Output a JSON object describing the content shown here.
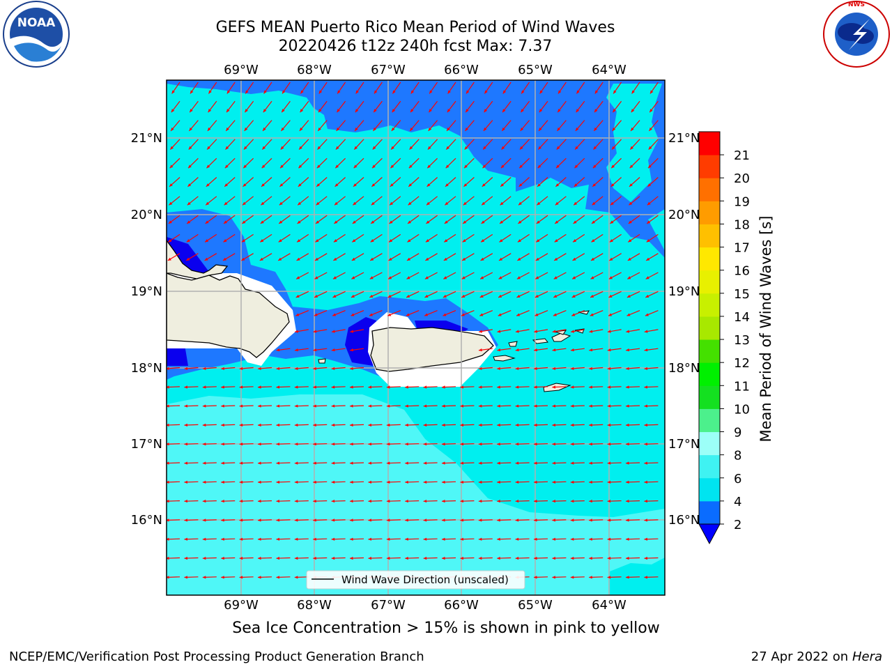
{
  "title": {
    "line1": "GEFS MEAN Puerto Rico Mean Period of Wind Waves",
    "line2": "20220426 t12z 240h fcst   Max: 7.37"
  },
  "axes": {
    "lon_labels": [
      "69°W",
      "68°W",
      "67°W",
      "66°W",
      "65°W",
      "64°W"
    ],
    "lat_labels": [
      "21°N",
      "20°N",
      "19°N",
      "18°N",
      "17°N",
      "16°N"
    ]
  },
  "legend": {
    "label": "Wind Wave Direction (unscaled)"
  },
  "colorbar": {
    "label": "Mean Period of Wind Waves [s]",
    "ticks": [
      "2",
      "4",
      "6",
      "8",
      "9",
      "10",
      "11",
      "12",
      "13",
      "14",
      "15",
      "16",
      "17",
      "18",
      "19",
      "20",
      "21"
    ],
    "colors": [
      "#0a6cff",
      "#00e4f0",
      "#3ff2f2",
      "#9cfff8",
      "#4cf08c",
      "#14e020",
      "#00f000",
      "#44e000",
      "#a8e800",
      "#c8f000",
      "#e8f000",
      "#ffe800",
      "#ffc000",
      "#ff9c00",
      "#ff7000",
      "#ff3c00",
      "#ff0000"
    ],
    "extend_color": "#0000ff"
  },
  "colors": {
    "period_2_4": "#1e78ff",
    "period_4_6": "#00efef",
    "period_6_8": "#4ff7f7",
    "period_lt_2": "#0a00ee",
    "land": "#efeedf",
    "arrow": "#ff0000"
  },
  "subtitle": "Sea Ice Concentration > 15% is shown in pink to yellow",
  "footer": {
    "left": "NCEP/EMC/Verification Post Processing Product Generation Branch",
    "date": "27 Apr 2022 on ",
    "machine": "Hera"
  },
  "logos": {
    "left": "NOAA",
    "right": "NATIONAL WEATHER SERVICE"
  }
}
